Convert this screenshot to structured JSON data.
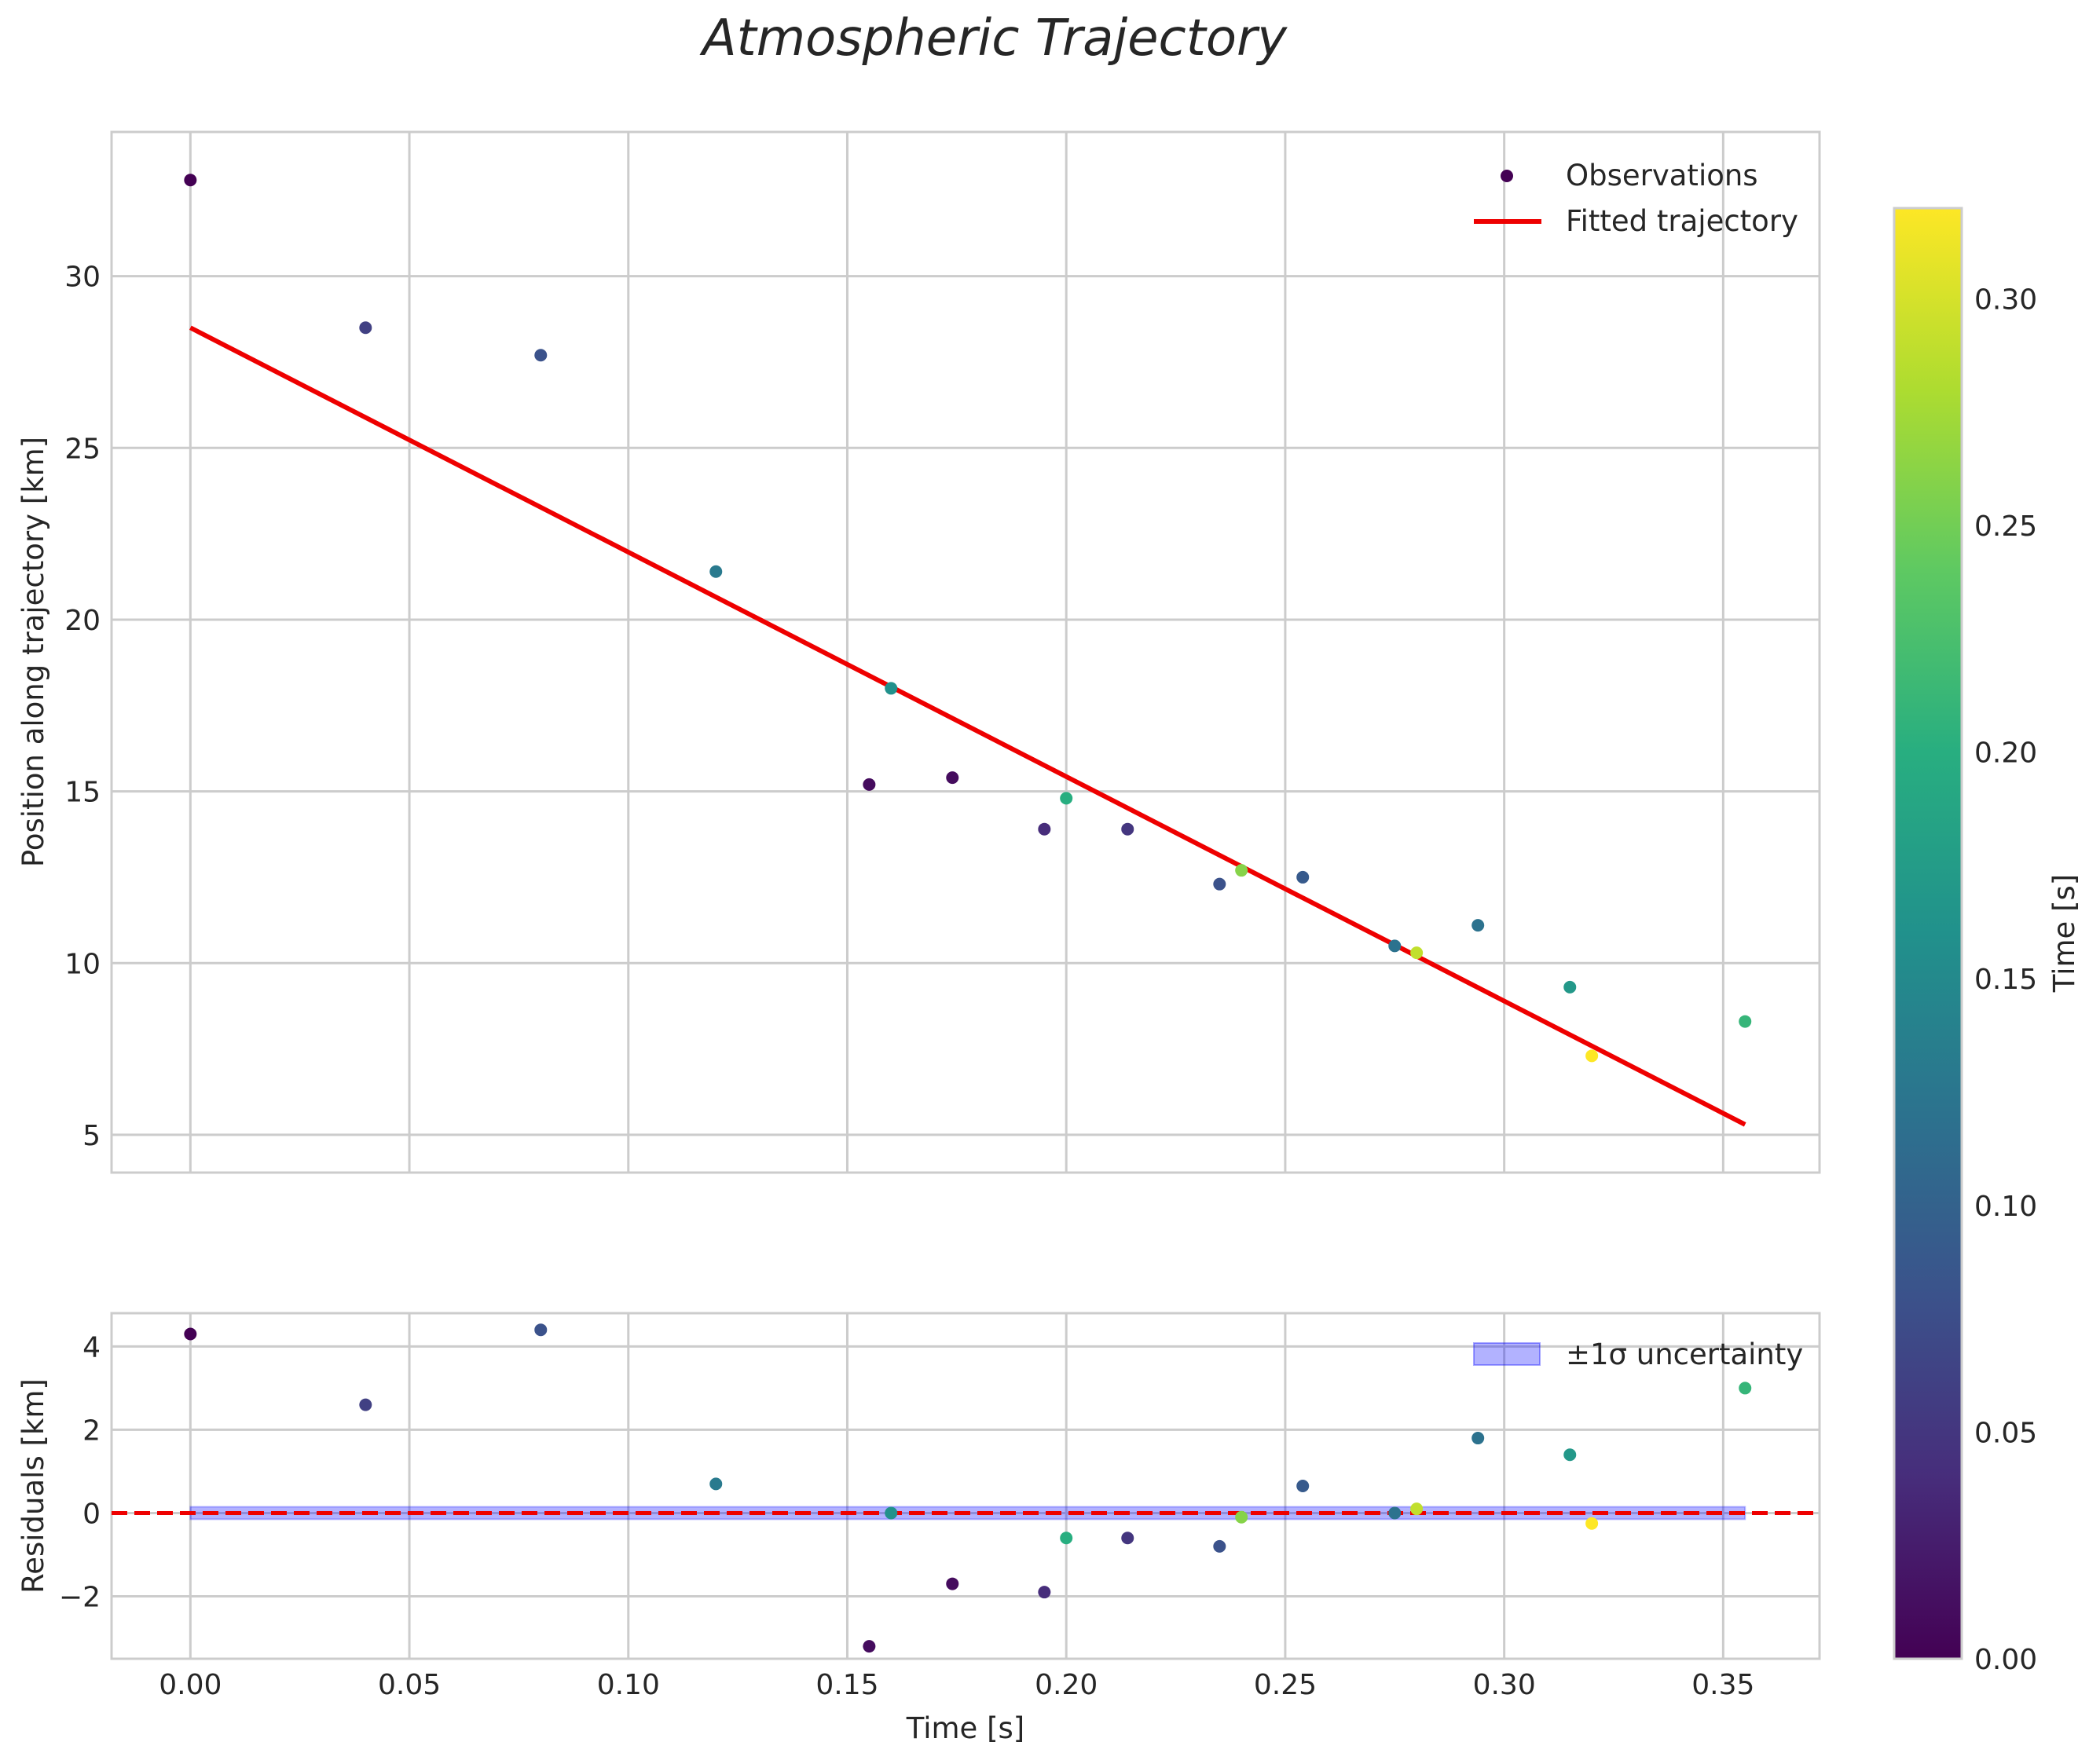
{
  "chart_data": [
    {
      "type": "scatter",
      "panel": "main",
      "title": "Atmospheric Trajectory",
      "xlabel": "",
      "ylabel": "Position along trajectory [km]",
      "xlim": [
        -0.018,
        0.372
      ],
      "ylim": [
        3.9,
        34.2
      ],
      "xticks": [
        0.0,
        0.05,
        0.1,
        0.15,
        0.2,
        0.25,
        0.3,
        0.35
      ],
      "yticks": [
        5,
        10,
        15,
        20,
        25,
        30
      ],
      "ytick_labels": [
        "5",
        "10",
        "15",
        "20",
        "25",
        "30"
      ],
      "grid": true,
      "legend": {
        "position": "top-right",
        "entries": [
          "Observations",
          "Fitted trajectory"
        ]
      },
      "series": [
        {
          "name": "Observations",
          "kind": "scatter",
          "colormap": "viridis",
          "points": [
            {
              "t": 0.0,
              "y": 32.8,
              "c": 0.0
            },
            {
              "t": 0.04,
              "y": 28.5,
              "c": 0.06
            },
            {
              "t": 0.08,
              "y": 27.7,
              "c": 0.08
            },
            {
              "t": 0.12,
              "y": 21.4,
              "c": 0.13
            },
            {
              "t": 0.155,
              "y": 15.2,
              "c": 0.01
            },
            {
              "t": 0.16,
              "y": 18.0,
              "c": 0.16
            },
            {
              "t": 0.174,
              "y": 15.4,
              "c": 0.01
            },
            {
              "t": 0.195,
              "y": 13.9,
              "c": 0.04
            },
            {
              "t": 0.2,
              "y": 14.8,
              "c": 0.2
            },
            {
              "t": 0.214,
              "y": 13.9,
              "c": 0.05
            },
            {
              "t": 0.235,
              "y": 12.3,
              "c": 0.08
            },
            {
              "t": 0.24,
              "y": 12.7,
              "c": 0.26
            },
            {
              "t": 0.254,
              "y": 12.5,
              "c": 0.09
            },
            {
              "t": 0.275,
              "y": 10.5,
              "c": 0.12
            },
            {
              "t": 0.28,
              "y": 10.3,
              "c": 0.29
            },
            {
              "t": 0.294,
              "y": 11.1,
              "c": 0.12
            },
            {
              "t": 0.315,
              "y": 9.3,
              "c": 0.17
            },
            {
              "t": 0.32,
              "y": 7.3,
              "c": 0.32
            },
            {
              "t": 0.355,
              "y": 8.3,
              "c": 0.21
            }
          ]
        },
        {
          "name": "Fitted trajectory",
          "kind": "line",
          "color": "#ee0000",
          "x": [
            0.0,
            0.355
          ],
          "y": [
            28.5,
            5.3
          ]
        }
      ]
    },
    {
      "type": "scatter",
      "panel": "residuals",
      "xlabel": "Time [s]",
      "ylabel": "Residuals [km]",
      "xlim": [
        -0.018,
        0.372
      ],
      "ylim": [
        -3.5,
        4.8
      ],
      "xticks": [
        0.0,
        0.05,
        0.1,
        0.15,
        0.2,
        0.25,
        0.3,
        0.35
      ],
      "xtick_labels": [
        "0.00",
        "0.05",
        "0.10",
        "0.15",
        "0.20",
        "0.25",
        "0.30",
        "0.35"
      ],
      "yticks": [
        -2,
        0,
        2,
        4
      ],
      "ytick_labels": [
        "−2",
        "0",
        "2",
        "4"
      ],
      "grid": true,
      "legend": {
        "position": "top-right",
        "entries": [
          "±1σ uncertainty"
        ]
      },
      "band": {
        "name": "±1σ uncertainty",
        "x": [
          0.0,
          0.355
        ],
        "half_width": 0.15,
        "color": "#0000ff"
      },
      "reference_line": {
        "y": 0,
        "color": "#ee0000",
        "style": "dashed"
      },
      "points": [
        {
          "t": 0.0,
          "r": 4.3,
          "c": 0.0
        },
        {
          "t": 0.04,
          "r": 2.6,
          "c": 0.06
        },
        {
          "t": 0.08,
          "r": 4.4,
          "c": 0.08
        },
        {
          "t": 0.12,
          "r": 0.7,
          "c": 0.13
        },
        {
          "t": 0.155,
          "r": -3.2,
          "c": 0.01
        },
        {
          "t": 0.16,
          "r": 0.0,
          "c": 0.16
        },
        {
          "t": 0.174,
          "r": -1.7,
          "c": 0.01
        },
        {
          "t": 0.195,
          "r": -1.9,
          "c": 0.04
        },
        {
          "t": 0.2,
          "r": -0.6,
          "c": 0.2
        },
        {
          "t": 0.214,
          "r": -0.6,
          "c": 0.05
        },
        {
          "t": 0.235,
          "r": -0.8,
          "c": 0.08
        },
        {
          "t": 0.24,
          "r": -0.1,
          "c": 0.26
        },
        {
          "t": 0.254,
          "r": 0.65,
          "c": 0.09
        },
        {
          "t": 0.275,
          "r": 0.0,
          "c": 0.12
        },
        {
          "t": 0.28,
          "r": 0.1,
          "c": 0.29
        },
        {
          "t": 0.294,
          "r": 1.8,
          "c": 0.12
        },
        {
          "t": 0.315,
          "r": 1.4,
          "c": 0.17
        },
        {
          "t": 0.32,
          "r": -0.25,
          "c": 0.32
        },
        {
          "t": 0.355,
          "r": 3.0,
          "c": 0.21
        }
      ]
    },
    {
      "type": "colorbar",
      "label": "Time [s]",
      "colormap": "viridis",
      "range": [
        0.0,
        0.32
      ],
      "ticks": [
        0.0,
        0.05,
        0.1,
        0.15,
        0.2,
        0.25,
        0.3
      ],
      "tick_labels": [
        "0.00",
        "0.05",
        "0.10",
        "0.15",
        "0.20",
        "0.25",
        "0.30"
      ]
    }
  ]
}
